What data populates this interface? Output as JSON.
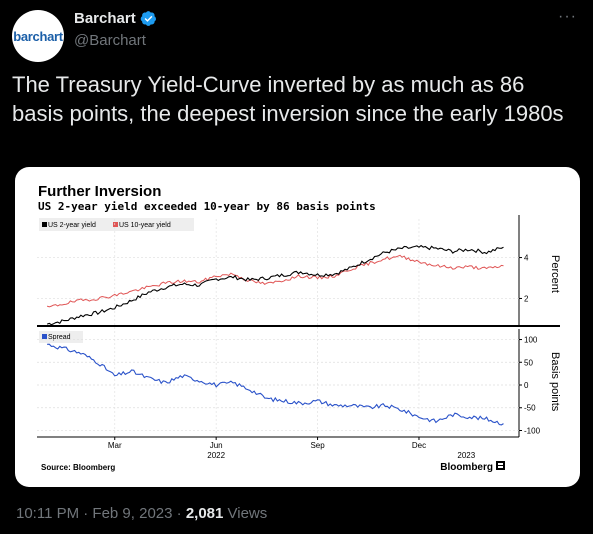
{
  "tweet": {
    "author_name": "Barchart",
    "handle": "@Barchart",
    "avatar_text": "barchart",
    "more_icon": "···",
    "text": "The Treasury Yield-Curve inverted by as much as 86 basis points, the deepest inversion since the early 1980s",
    "timestamp": "10:11 PM · Feb 9, 2023 · ",
    "views_count": "2,081",
    "views_label": " Views"
  },
  "colors": {
    "verified": "#1d9bf0",
    "series_2y": "#000000",
    "series_10y": "#e05555",
    "spread": "#2a52c9"
  },
  "chart_data": {
    "type": "line",
    "title": "Further Inversion",
    "subtitle": "US 2-year yield exceeded 10-year by 86 basis points",
    "source": "Source: Bloomberg",
    "brand": "Bloomberg",
    "top_panel": {
      "ylabel": "Percent",
      "yticks": [
        "4",
        "2"
      ],
      "ylim": [
        0.8,
        5.2
      ],
      "legend": [
        "US 2-year yield",
        "US 10-year yield"
      ],
      "x": [
        0,
        0.5,
        1,
        1.5,
        2,
        2.5,
        3,
        3.5,
        4,
        4.5,
        5,
        5.5,
        6,
        6.5,
        7,
        7.5,
        8,
        8.5,
        9,
        9.5,
        10,
        10.5,
        11,
        11.5,
        12,
        12.5,
        13,
        13.5
      ],
      "series": [
        {
          "name": "US 2-year yield",
          "values": [
            0.75,
            0.9,
            1.15,
            1.3,
            1.55,
            1.9,
            2.3,
            2.55,
            2.7,
            2.65,
            2.95,
            3.05,
            2.9,
            3.0,
            3.15,
            3.3,
            3.15,
            3.2,
            3.5,
            3.9,
            4.25,
            4.45,
            4.5,
            4.45,
            4.3,
            4.4,
            4.25,
            4.5
          ]
        },
        {
          "name": "US 10-year yield",
          "values": [
            1.55,
            1.75,
            1.9,
            2.0,
            2.15,
            2.35,
            2.55,
            2.75,
            2.85,
            2.8,
            3.1,
            3.2,
            2.85,
            2.7,
            2.9,
            3.1,
            3.0,
            3.1,
            3.45,
            3.7,
            3.95,
            4.05,
            3.8,
            3.6,
            3.5,
            3.55,
            3.45,
            3.6
          ]
        }
      ]
    },
    "bottom_panel": {
      "ylabel": "Basis points",
      "yticks": [
        "100",
        "50",
        "0",
        "-50",
        "-100"
      ],
      "ylim": [
        -110,
        110
      ],
      "legend": [
        "Spread"
      ],
      "x": [
        0,
        0.5,
        1,
        1.5,
        2,
        2.5,
        3,
        3.5,
        4,
        4.5,
        5,
        5.5,
        6,
        6.5,
        7,
        7.5,
        8,
        8.5,
        9,
        9.5,
        10,
        10.5,
        11,
        11.5,
        12,
        12.5,
        13,
        13.5
      ],
      "series": [
        {
          "name": "Spread",
          "values": [
            90,
            80,
            70,
            50,
            20,
            30,
            15,
            5,
            20,
            10,
            0,
            5,
            -10,
            -30,
            -35,
            -40,
            -35,
            -45,
            -45,
            -50,
            -45,
            -55,
            -70,
            -80,
            -65,
            -70,
            -75,
            -85
          ]
        }
      ]
    },
    "xaxis": {
      "months": [
        "Mar",
        "Jun",
        "Sep",
        "Dec"
      ],
      "month_positions": [
        2,
        5,
        8,
        11
      ],
      "years": [
        "2022",
        "2023"
      ],
      "year_positions": [
        5,
        12.4
      ],
      "xlim": [
        -0.3,
        13.9
      ]
    }
  }
}
